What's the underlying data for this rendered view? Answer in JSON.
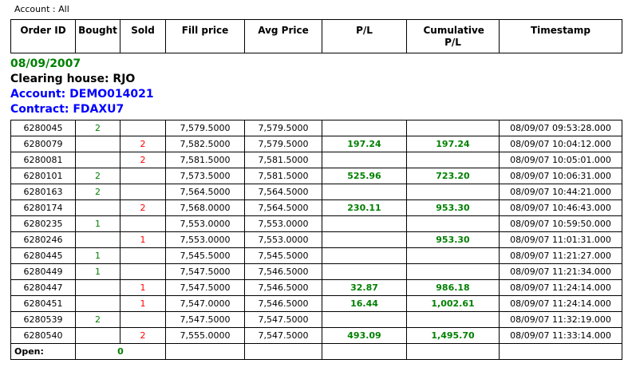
{
  "filter_bar": {
    "account_label": "Account : All"
  },
  "columns": [
    {
      "label": "Order ID"
    },
    {
      "label": "Bought"
    },
    {
      "label": "Sold"
    },
    {
      "label": "Fill price"
    },
    {
      "label": "Avg Price"
    },
    {
      "label": "P/L"
    },
    {
      "label": "Cumulative P/L"
    },
    {
      "label": "Timestamp"
    }
  ],
  "section": {
    "date": "08/09/2007",
    "clearing_house": "Clearing house: RJO",
    "account": "Account: DEMO014021",
    "contract": "Contract: FDAXU7"
  },
  "rows": [
    {
      "order_id": "6280045",
      "bought": "2",
      "sold": "",
      "fill_price": "7,579.5000",
      "avg_price": "7,579.5000",
      "pl": "",
      "cum_pl": "",
      "timestamp": "08/09/07 09:53:28.000"
    },
    {
      "order_id": "6280079",
      "bought": "",
      "sold": "2",
      "fill_price": "7,582.5000",
      "avg_price": "7,579.5000",
      "pl": "197.24",
      "cum_pl": "197.24",
      "timestamp": "08/09/07 10:04:12.000"
    },
    {
      "order_id": "6280081",
      "bought": "",
      "sold": "2",
      "fill_price": "7,581.5000",
      "avg_price": "7,581.5000",
      "pl": "",
      "cum_pl": "",
      "timestamp": "08/09/07 10:05:01.000"
    },
    {
      "order_id": "6280101",
      "bought": "2",
      "sold": "",
      "fill_price": "7,573.5000",
      "avg_price": "7,581.5000",
      "pl": "525.96",
      "cum_pl": "723.20",
      "timestamp": "08/09/07 10:06:31.000"
    },
    {
      "order_id": "6280163",
      "bought": "2",
      "sold": "",
      "fill_price": "7,564.5000",
      "avg_price": "7,564.5000",
      "pl": "",
      "cum_pl": "",
      "timestamp": "08/09/07 10:44:21.000"
    },
    {
      "order_id": "6280174",
      "bought": "",
      "sold": "2",
      "fill_price": "7,568.0000",
      "avg_price": "7,564.5000",
      "pl": "230.11",
      "cum_pl": "953.30",
      "timestamp": "08/09/07 10:46:43.000"
    },
    {
      "order_id": "6280235",
      "bought": "1",
      "sold": "",
      "fill_price": "7,553.0000",
      "avg_price": "7,553.0000",
      "pl": "",
      "cum_pl": "",
      "timestamp": "08/09/07 10:59:50.000"
    },
    {
      "order_id": "6280246",
      "bought": "",
      "sold": "1",
      "fill_price": "7,553.0000",
      "avg_price": "7,553.0000",
      "pl": "",
      "cum_pl": "953.30",
      "timestamp": "08/09/07 11:01:31.000"
    },
    {
      "order_id": "6280445",
      "bought": "1",
      "sold": "",
      "fill_price": "7,545.5000",
      "avg_price": "7,545.5000",
      "pl": "",
      "cum_pl": "",
      "timestamp": "08/09/07 11:21:27.000"
    },
    {
      "order_id": "6280449",
      "bought": "1",
      "sold": "",
      "fill_price": "7,547.5000",
      "avg_price": "7,546.5000",
      "pl": "",
      "cum_pl": "",
      "timestamp": "08/09/07 11:21:34.000"
    },
    {
      "order_id": "6280447",
      "bought": "",
      "sold": "1",
      "fill_price": "7,547.5000",
      "avg_price": "7,546.5000",
      "pl": "32.87",
      "cum_pl": "986.18",
      "timestamp": "08/09/07 11:24:14.000"
    },
    {
      "order_id": "6280451",
      "bought": "",
      "sold": "1",
      "fill_price": "7,547.0000",
      "avg_price": "7,546.5000",
      "pl": "16.44",
      "cum_pl": "1,002.61",
      "timestamp": "08/09/07 11:24:14.000"
    },
    {
      "order_id": "6280539",
      "bought": "2",
      "sold": "",
      "fill_price": "7,547.5000",
      "avg_price": "7,547.5000",
      "pl": "",
      "cum_pl": "",
      "timestamp": "08/09/07 11:32:19.000"
    },
    {
      "order_id": "6280540",
      "bought": "",
      "sold": "2",
      "fill_price": "7,555.0000",
      "avg_price": "7,547.5000",
      "pl": "493.09",
      "cum_pl": "1,495.70",
      "timestamp": "08/09/07 11:33:14.000"
    }
  ],
  "open_row": {
    "label": "Open:",
    "value": "0"
  },
  "colors": {
    "green": "#008000",
    "red": "#ff0000",
    "blue": "#0000ff",
    "border": "#000000"
  }
}
